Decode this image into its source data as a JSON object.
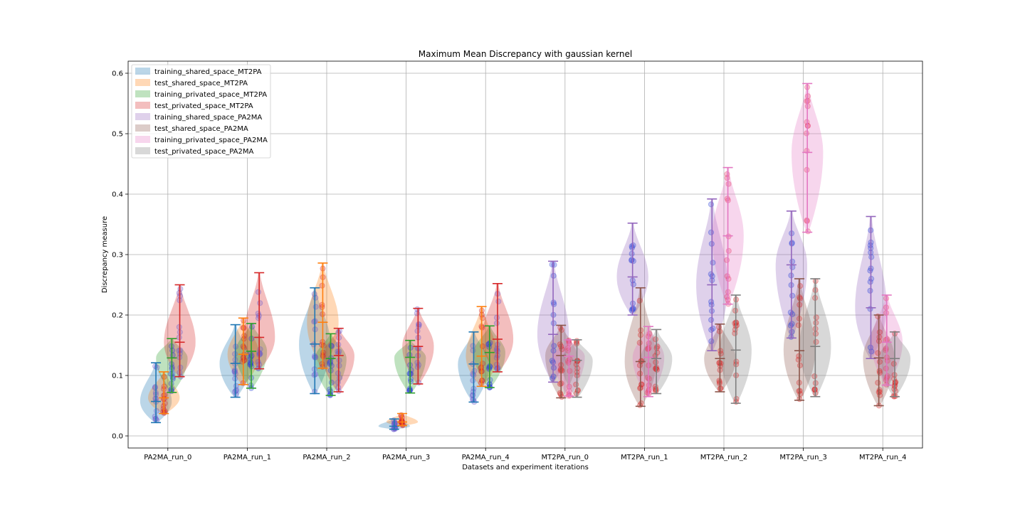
{
  "chart_data": {
    "type": "violin",
    "title": "Maximum Mean Discrepancy with gaussian kernel",
    "xlabel": "Datasets and experiment iterations",
    "ylabel": "Discrepancy measure",
    "ylim": [
      -0.02,
      0.62
    ],
    "yticks": [
      "0.0",
      "0.1",
      "0.2",
      "0.3",
      "0.4",
      "0.5",
      "0.6"
    ],
    "grid": true,
    "legend_position": "top-left",
    "categories": [
      "PA2MA_run_0",
      "PA2MA_run_1",
      "PA2MA_run_2",
      "PA2MA_run_3",
      "PA2MA_run_4",
      "MT2PA_run_0",
      "MT2PA_run_1",
      "MT2PA_run_2",
      "MT2PA_run_3",
      "MT2PA_run_4"
    ],
    "series": [
      {
        "name": "training_shared_space_MT2PA",
        "color": "#1f77b4",
        "group": 0,
        "offset": -0.3,
        "stats": [
          [
            0.022,
            0.057,
            0.121
          ],
          [
            0.064,
            0.12,
            0.184
          ],
          [
            0.07,
            0.152,
            0.245
          ],
          [
            0.011,
            0.016,
            0.028
          ],
          [
            0.056,
            0.119,
            0.172
          ]
        ]
      },
      {
        "name": "test_shared_space_MT2PA",
        "color": "#ff7f0e",
        "group": 0,
        "offset": -0.1,
        "stats": [
          [
            0.037,
            0.063,
            0.106
          ],
          [
            0.085,
            0.135,
            0.195
          ],
          [
            0.112,
            0.188,
            0.286
          ],
          [
            0.017,
            0.023,
            0.037
          ],
          [
            0.082,
            0.132,
            0.214
          ]
        ]
      },
      {
        "name": "training_privated_space_MT2PA",
        "color": "#2ca02c",
        "group": 0,
        "offset": 0.1,
        "stats": [
          [
            0.072,
            0.129,
            0.161
          ],
          [
            0.079,
            0.14,
            0.186
          ],
          [
            0.067,
            0.128,
            0.169
          ],
          [
            0.071,
            0.13,
            0.158
          ],
          [
            0.08,
            0.138,
            0.182
          ]
        ]
      },
      {
        "name": "test_privated_space_MT2PA",
        "color": "#d62728",
        "group": 0,
        "offset": 0.3,
        "stats": [
          [
            0.098,
            0.155,
            0.25
          ],
          [
            0.111,
            0.163,
            0.27
          ],
          [
            0.073,
            0.133,
            0.178
          ],
          [
            0.086,
            0.148,
            0.211
          ],
          [
            0.106,
            0.16,
            0.252
          ]
        ]
      },
      {
        "name": "training_shared_space_PA2MA",
        "color": "#9467bd",
        "group": 1,
        "offset": -0.3,
        "stats": [
          [
            0.089,
            0.168,
            0.289
          ],
          [
            0.2,
            0.263,
            0.352
          ],
          [
            0.141,
            0.25,
            0.392
          ],
          [
            0.162,
            0.283,
            0.372
          ],
          [
            0.128,
            0.212,
            0.363
          ]
        ]
      },
      {
        "name": "test_shared_space_PA2MA",
        "color": "#8c564b",
        "group": 1,
        "offset": -0.1,
        "stats": [
          [
            0.063,
            0.133,
            0.183
          ],
          [
            0.049,
            0.123,
            0.245
          ],
          [
            0.073,
            0.128,
            0.185
          ],
          [
            0.059,
            0.141,
            0.26
          ],
          [
            0.05,
            0.129,
            0.2
          ]
        ]
      },
      {
        "name": "training_privated_space_PA2MA",
        "color": "#e377c2",
        "group": 1,
        "offset": 0.1,
        "stats": [
          [
            0.066,
            0.132,
            0.159
          ],
          [
            0.065,
            0.13,
            0.181
          ],
          [
            0.218,
            0.331,
            0.444
          ],
          [
            0.337,
            0.469,
            0.583
          ],
          [
            0.084,
            0.155,
            0.233
          ]
        ]
      },
      {
        "name": "test_privated_space_PA2MA",
        "color": "#7f7f7f",
        "group": 1,
        "offset": 0.3,
        "stats": [
          [
            0.064,
            0.125,
            0.159
          ],
          [
            0.07,
            0.128,
            0.176
          ],
          [
            0.054,
            0.142,
            0.233
          ],
          [
            0.065,
            0.148,
            0.26
          ],
          [
            0.065,
            0.128,
            0.172
          ]
        ]
      }
    ],
    "stats_format": [
      "min",
      "median",
      "max"
    ]
  }
}
